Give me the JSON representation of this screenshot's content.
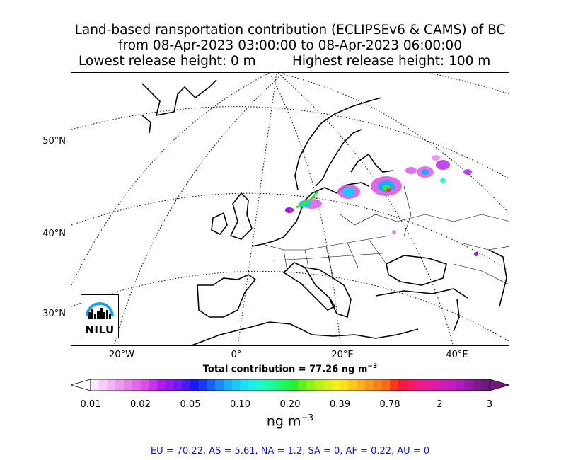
{
  "title": {
    "line1": "Land-based ransportation contribution (ECLIPSEv6 & CAMS) of BC",
    "line2": "from 08-Apr-2023 03:00:00 to 08-Apr-2023 06:00:00",
    "line3a": "Lowest release height: 0 m",
    "line3b": "Highest release height: 100 m"
  },
  "map": {
    "lat_labels": [
      "50°N",
      "40°N",
      "30°N"
    ],
    "lon_labels": [
      "20°W",
      "0°",
      "20°E",
      "40°E"
    ],
    "logo_text": "NILU",
    "colors": {
      "coast": "#000000",
      "border": "#000000",
      "graticule": "#000000"
    }
  },
  "total": {
    "prefix": "Total contribution = 77.26 ng m",
    "exp": "−3"
  },
  "colorbar": {
    "tick_labels": [
      "0.01",
      "0.02",
      "0.05",
      "0.10",
      "0.20",
      "0.39",
      "0.78",
      "2",
      "3"
    ],
    "unit": "ng m",
    "unit_exp": "−3",
    "colors": [
      "#fbe6fb",
      "#f6cdf6",
      "#f1b4f1",
      "#ec9bec",
      "#e682e6",
      "#e069e6",
      "#d94fe8",
      "#c832ea",
      "#b21cef",
      "#951af2",
      "#731af4",
      "#4a1af6",
      "#1a1af8",
      "#1a3af8",
      "#1a62f8",
      "#1a8af8",
      "#1aacf8",
      "#1ac8f8",
      "#1ae0f4",
      "#1af0e8",
      "#1af8cc",
      "#1af8a8",
      "#1af880",
      "#1af858",
      "#28f030",
      "#60f01a",
      "#90f01a",
      "#b8f01a",
      "#d8f01a",
      "#f0f01a",
      "#f8e01a",
      "#f8c81a",
      "#f8b01a",
      "#f8981a",
      "#f8801a",
      "#f8681a",
      "#f83a1a",
      "#f81a3a",
      "#f81a60",
      "#f01a82",
      "#e81a98",
      "#e01aa8",
      "#d41ab6",
      "#c41ac0",
      "#b01ac0",
      "#9a1aa8",
      "#801a90",
      "#701a80"
    ]
  },
  "regions": "EU = 70.22,  AS = 5.61,  NA = 1.2,  SA = 0,  AF = 0.22,  AU = 0"
}
